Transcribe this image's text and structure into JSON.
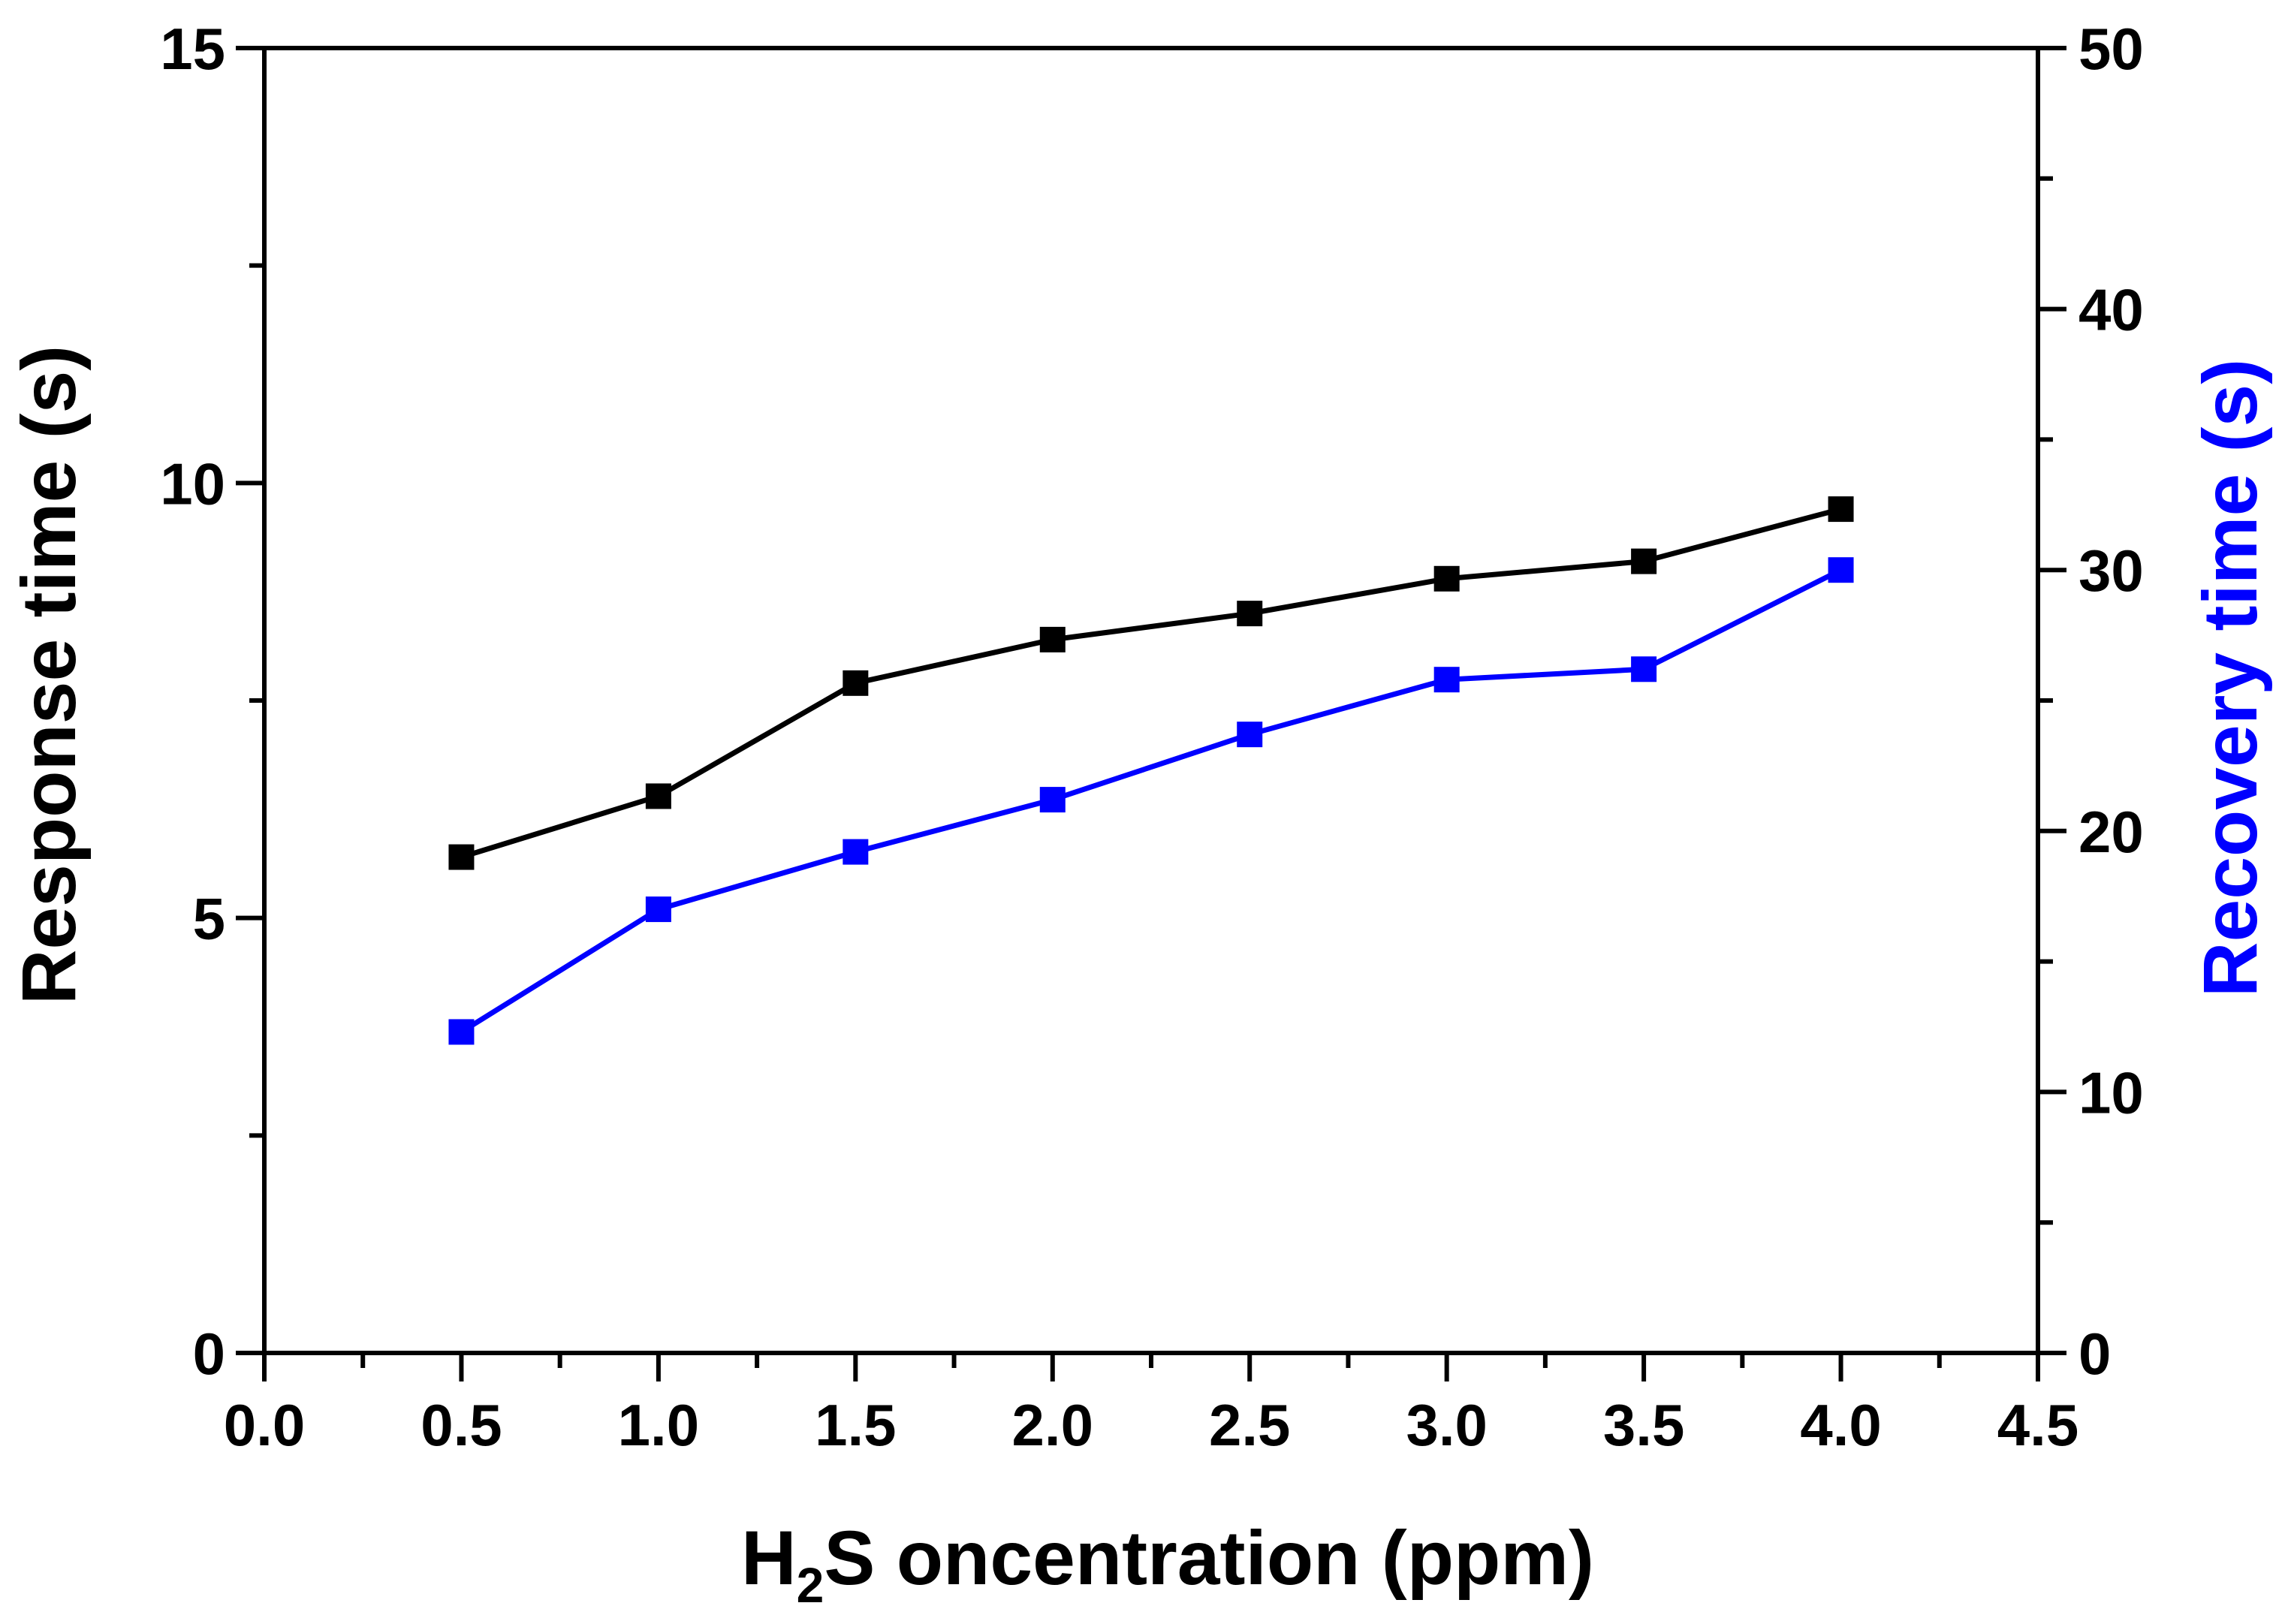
{
  "chart_data": {
    "type": "line",
    "x": [
      0.5,
      1.0,
      1.5,
      2.0,
      2.5,
      3.0,
      3.5,
      4.0
    ],
    "xlim": [
      0,
      4.5
    ],
    "x_ticks": [
      "0.0",
      "0.5",
      "1.0",
      "1.5",
      "2.0",
      "2.5",
      "3.0",
      "3.5",
      "4.0",
      "4.5"
    ],
    "xlabel": {
      "prefix": "H",
      "subscript": "2",
      "suffix": "S oncentration (ppm)"
    },
    "grid": false,
    "y_left": {
      "label": "Response time (s)",
      "range": [
        0,
        15
      ],
      "ticks": [
        "0",
        "5",
        "10",
        "15"
      ],
      "series": {
        "color": "#000000",
        "values": [
          5.7,
          6.4,
          7.7,
          8.2,
          8.5,
          8.9,
          9.1,
          9.7
        ]
      }
    },
    "y_right": {
      "label": "Recovery time (s)",
      "color": "#0000FF",
      "range": [
        0,
        50
      ],
      "ticks": [
        "0",
        "10",
        "20",
        "30",
        "40",
        "50"
      ],
      "series": {
        "color": "#0000FF",
        "values": [
          12.3,
          17.0,
          19.2,
          21.2,
          23.7,
          25.8,
          26.2,
          30.0
        ]
      }
    }
  }
}
